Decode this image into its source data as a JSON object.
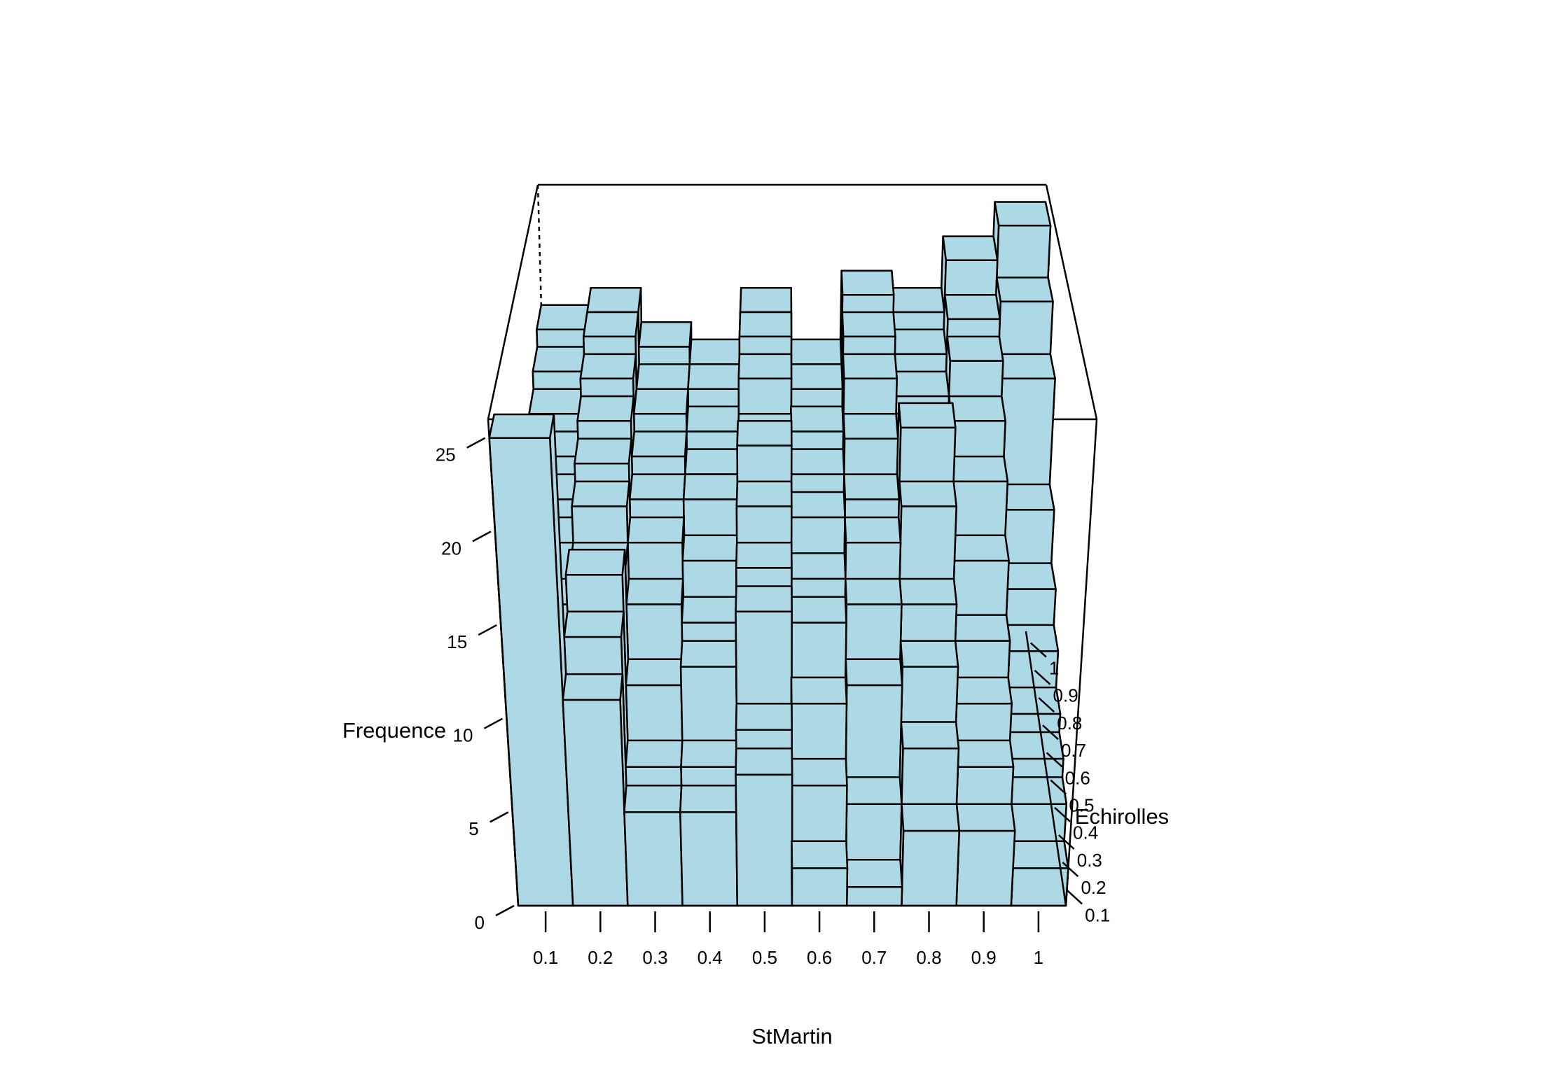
{
  "chart_data": {
    "type": "bar3d",
    "xlabel": "StMartin",
    "ylabel": "Echirolles",
    "zlabel": "Frequence",
    "x": [
      0.1,
      0.2,
      0.3,
      0.4,
      0.5,
      0.6,
      0.7,
      0.8,
      0.9,
      1
    ],
    "y": [
      0.1,
      0.2,
      0.3,
      0.4,
      0.5,
      0.6,
      0.7,
      0.8,
      0.9,
      1
    ],
    "z": [
      [
        25,
        11,
        5,
        5,
        7,
        2,
        1,
        4,
        4,
        2
      ],
      [
        12,
        13,
        6,
        6,
        8,
        5,
        4,
        7,
        6,
        4
      ],
      [
        10,
        15,
        9,
        10,
        13,
        8,
        9,
        10,
        8,
        5
      ],
      [
        12,
        14,
        12,
        11,
        14,
        11,
        12,
        12,
        10,
        6
      ],
      [
        14,
        16,
        14,
        13,
        16,
        12,
        14,
        16,
        13,
        8
      ],
      [
        15,
        17,
        15,
        15,
        18,
        14,
        15,
        19,
        16,
        10
      ],
      [
        16,
        18,
        16,
        15,
        17,
        15,
        17,
        17,
        18,
        13
      ],
      [
        17,
        19,
        17,
        16,
        19,
        16,
        19,
        18,
        20,
        19
      ],
      [
        18,
        20,
        17,
        17,
        20,
        17,
        20,
        19,
        21,
        22
      ],
      [
        19,
        20,
        18,
        17,
        20,
        17,
        21,
        20,
        23,
        25
      ]
    ],
    "zlim": [
      0,
      26
    ],
    "zticks": [
      0,
      5,
      10,
      15,
      20,
      25
    ],
    "color": "#add8e6"
  }
}
